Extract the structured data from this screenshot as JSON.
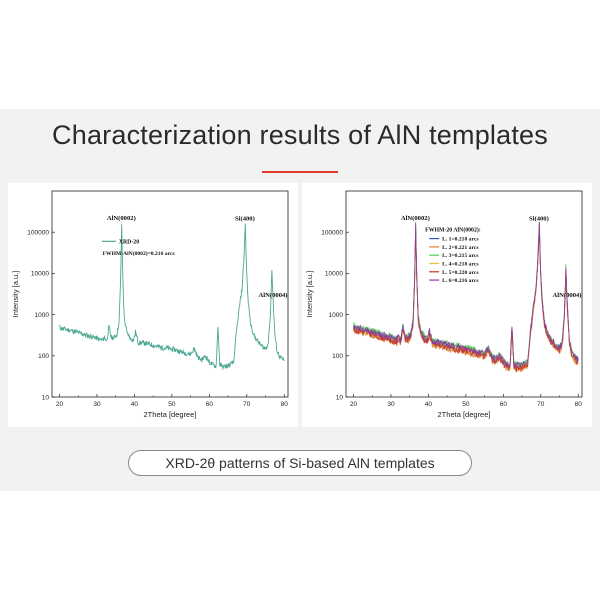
{
  "header": {
    "title": "Characterization results of AlN templates"
  },
  "caption": {
    "text": "XRD-2θ patterns of Si-based AlN templates"
  },
  "colors": {
    "accent": "#e03a2c",
    "band": "#f2f2f2"
  },
  "chart_data": [
    {
      "type": "line",
      "xlabel": "2Theta [degree]",
      "ylabel": "Intensity [a.u.]",
      "xlim": [
        18,
        81
      ],
      "ylim": [
        10,
        1000000
      ],
      "yscale": "log",
      "xticks": [
        20,
        30,
        40,
        50,
        60,
        70,
        80
      ],
      "yticks": [
        10,
        100,
        1000,
        10000,
        100000
      ],
      "grid": false,
      "legend": "top-center",
      "annotations": [
        {
          "text": "AlN(0002)",
          "x": 36.5,
          "y": 200000
        },
        {
          "text": "Si(400)",
          "x": 69.5,
          "y": 190000
        },
        {
          "text": "AlN(0004)",
          "x": 77.0,
          "y": 2700
        },
        {
          "text": "FWHM-AlN(0002)=0.216 arcs",
          "x": 31.5,
          "y": 28000
        }
      ],
      "series": [
        {
          "name": "XRD-20",
          "color": "#4aa792",
          "x": [
            20,
            22,
            24,
            26,
            28,
            29.5,
            30.5,
            31.5,
            32,
            32.6,
            33.2,
            33.8,
            34.5,
            35.3,
            35.9,
            36.3,
            36.6,
            36.9,
            37.3,
            38,
            39,
            39.8,
            40.3,
            41,
            43,
            45,
            47,
            49,
            51,
            53,
            55,
            56,
            57,
            58,
            59,
            60,
            61,
            61.8,
            62.3,
            62.8,
            63.5,
            64.5,
            65.5,
            66.5,
            67.2,
            68,
            68.7,
            69.2,
            69.6,
            69.9,
            70.3,
            71,
            72,
            73,
            74,
            75,
            75.7,
            76.3,
            76.7,
            77.1,
            77.6,
            78.2,
            79,
            80
          ],
          "y": [
            480,
            430,
            390,
            340,
            300,
            280,
            250,
            240,
            280,
            230,
            500,
            280,
            270,
            330,
            650,
            6000,
            140000,
            8000,
            800,
            360,
            260,
            240,
            380,
            210,
            200,
            180,
            160,
            150,
            140,
            120,
            110,
            150,
            90,
            80,
            100,
            70,
            60,
            55,
            500,
            60,
            55,
            55,
            60,
            70,
            350,
            1500,
            4000,
            20000,
            160000,
            15000,
            2500,
            600,
            300,
            220,
            170,
            150,
            200,
            1000,
            13000,
            1500,
            250,
            120,
            90,
            75
          ]
        }
      ]
    },
    {
      "type": "line",
      "xlabel": "2Theta [degree]",
      "ylabel": "Intensity [a.u.]",
      "xlim": [
        18,
        81
      ],
      "ylim": [
        10,
        1000000
      ],
      "yscale": "log",
      "xticks": [
        20,
        30,
        40,
        50,
        60,
        70,
        80
      ],
      "yticks": [
        10,
        100,
        1000,
        10000,
        100000
      ],
      "grid": false,
      "legend": "top-center",
      "legend_title": "FWHM-20 AlN(0002):",
      "annotations": [
        {
          "text": "AlN(0002)",
          "x": 36.5,
          "y": 200000
        },
        {
          "text": "Si(400)",
          "x": 69.5,
          "y": 190000
        },
        {
          "text": "AlN(0004)",
          "x": 77.0,
          "y": 2700
        }
      ],
      "x": [
        20,
        22,
        24,
        26,
        28,
        29.5,
        30.5,
        31.5,
        32,
        32.6,
        33.2,
        33.8,
        34.5,
        35.3,
        35.9,
        36.3,
        36.6,
        36.9,
        37.3,
        38,
        39,
        39.8,
        40.3,
        41,
        43,
        45,
        47,
        49,
        51,
        53,
        55,
        56,
        57,
        58,
        59,
        60,
        61,
        61.8,
        62.3,
        62.8,
        63.5,
        64.5,
        65.5,
        66.5,
        67.2,
        68,
        68.7,
        69.2,
        69.6,
        69.9,
        70.3,
        71,
        72,
        73,
        74,
        75,
        75.7,
        76.3,
        76.7,
        77.1,
        77.6,
        78.2,
        79,
        80
      ],
      "series": [
        {
          "name": "L. 1=0.218 arcs",
          "color": "#2f55c8",
          "scale": 1.0
        },
        {
          "name": "L. 2=0.221 arcs",
          "color": "#e0812a",
          "scale": 0.85
        },
        {
          "name": "L. 3=0.215 arcs",
          "color": "#4ad24a",
          "scale": 1.1
        },
        {
          "name": "L. 4=0.218 arcs",
          "color": "#e0c63a",
          "scale": 0.95
        },
        {
          "name": "L. 5=0.220 arcs",
          "color": "#c8342a",
          "scale": 0.9
        },
        {
          "name": "L. 6=0.216 arcs",
          "color": "#8a3aa8",
          "scale": 1.05
        }
      ],
      "base_y": [
        480,
        430,
        390,
        340,
        300,
        280,
        250,
        240,
        280,
        230,
        500,
        280,
        270,
        330,
        650,
        6000,
        140000,
        8000,
        800,
        360,
        260,
        240,
        380,
        210,
        200,
        180,
        160,
        150,
        140,
        120,
        110,
        150,
        90,
        80,
        100,
        70,
        60,
        55,
        500,
        60,
        55,
        55,
        60,
        70,
        350,
        1500,
        4000,
        20000,
        160000,
        15000,
        2500,
        600,
        300,
        220,
        170,
        150,
        200,
        1000,
        13000,
        1500,
        250,
        120,
        90,
        75
      ]
    }
  ]
}
